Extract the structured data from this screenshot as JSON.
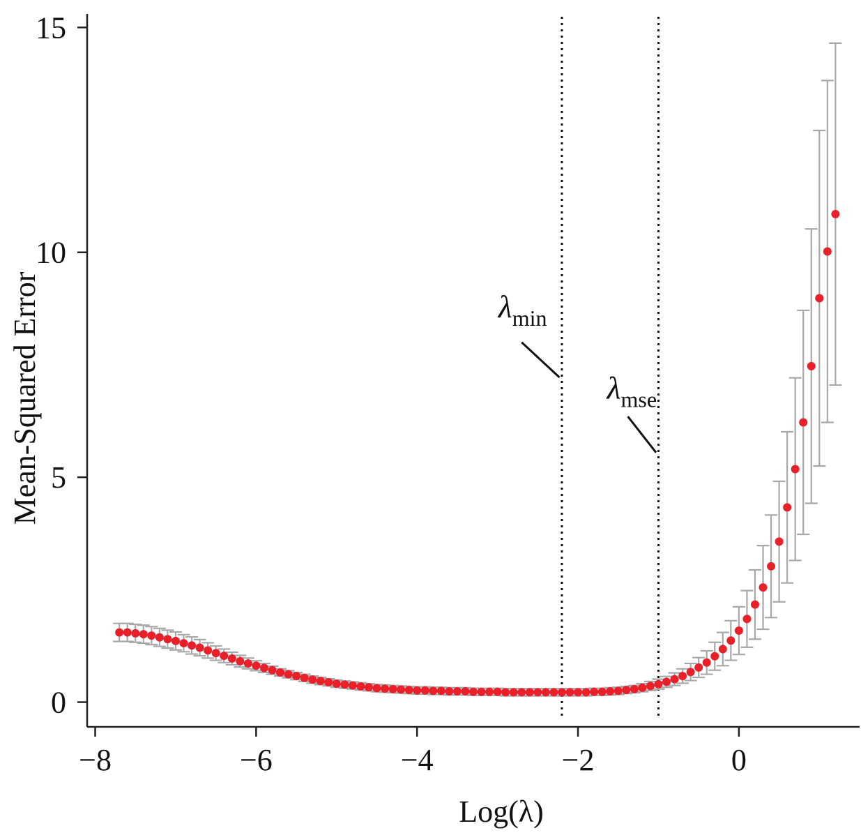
{
  "chart_data": {
    "type": "scatter",
    "title": "",
    "xlabel": "Log(λ)",
    "ylabel": "Mean-Squared Error",
    "xlim": [
      -8.1,
      1.5
    ],
    "ylim": [
      -0.55,
      15.3
    ],
    "x_ticks": [
      -8,
      -6,
      -4,
      -2,
      0
    ],
    "x_tick_labels": [
      "−8",
      "−6",
      "−4",
      "−2",
      "0"
    ],
    "y_ticks": [
      0,
      5,
      10,
      15
    ],
    "y_tick_labels": [
      "0",
      "5",
      "10",
      "15"
    ],
    "grid": false,
    "marker_color": "#e8202a",
    "errorbar_color": "#a8a8a8",
    "reference_lines": [
      {
        "name": "λmin",
        "symbol": "λ",
        "subscript": "min",
        "x": -2.2
      },
      {
        "name": "λmse",
        "symbol": "λ",
        "subscript": "mse",
        "x": -1.0
      }
    ],
    "series": [
      {
        "x": [
          -7.7,
          -7.6,
          -7.5,
          -7.4,
          -7.3,
          -7.2,
          -7.1,
          -7.0,
          -6.9,
          -6.8,
          -6.7,
          -6.6,
          -6.5,
          -6.4,
          -6.3,
          -6.2,
          -6.1,
          -6.0,
          -5.9,
          -5.8,
          -5.7,
          -5.6,
          -5.5,
          -5.4,
          -5.3,
          -5.2,
          -5.1,
          -5.0,
          -4.9,
          -4.8,
          -4.7,
          -4.6,
          -4.5,
          -4.4,
          -4.3,
          -4.2,
          -4.1,
          -4.0,
          -3.9,
          -3.8,
          -3.7,
          -3.6,
          -3.5,
          -3.4,
          -3.3,
          -3.2,
          -3.1,
          -3.0,
          -2.9,
          -2.8,
          -2.7,
          -2.6,
          -2.5,
          -2.4,
          -2.3,
          -2.2,
          -2.1,
          -2.0,
          -1.9,
          -1.8,
          -1.7,
          -1.6,
          -1.5,
          -1.4,
          -1.3,
          -1.2,
          -1.1,
          -1.0,
          -0.9,
          -0.8,
          -0.7,
          -0.6,
          -0.5,
          -0.4,
          -0.3,
          -0.2,
          -0.1,
          0.0,
          0.1,
          0.2,
          0.3,
          0.4,
          0.5,
          0.6,
          0.7,
          0.8,
          0.9,
          1.0,
          1.1,
          1.2
        ],
        "y": [
          1.55,
          1.55,
          1.53,
          1.51,
          1.48,
          1.44,
          1.4,
          1.36,
          1.31,
          1.26,
          1.21,
          1.15,
          1.09,
          1.03,
          0.97,
          0.91,
          0.86,
          0.81,
          0.76,
          0.71,
          0.66,
          0.62,
          0.58,
          0.54,
          0.5,
          0.47,
          0.44,
          0.41,
          0.39,
          0.37,
          0.35,
          0.33,
          0.31,
          0.3,
          0.29,
          0.28,
          0.27,
          0.26,
          0.26,
          0.25,
          0.25,
          0.24,
          0.24,
          0.24,
          0.23,
          0.23,
          0.23,
          0.23,
          0.22,
          0.22,
          0.22,
          0.22,
          0.22,
          0.22,
          0.22,
          0.22,
          0.22,
          0.22,
          0.22,
          0.23,
          0.23,
          0.24,
          0.25,
          0.27,
          0.29,
          0.32,
          0.36,
          0.4,
          0.45,
          0.51,
          0.58,
          0.67,
          0.77,
          0.88,
          1.02,
          1.18,
          1.37,
          1.59,
          1.85,
          2.17,
          2.55,
          3.02,
          3.57,
          4.33,
          5.18,
          6.22,
          7.47,
          8.98,
          10.02,
          10.85
        ],
        "err_low": [
          1.35,
          1.35,
          1.33,
          1.31,
          1.28,
          1.24,
          1.2,
          1.16,
          1.12,
          1.07,
          1.03,
          0.98,
          0.93,
          0.88,
          0.83,
          0.78,
          0.74,
          0.7,
          0.66,
          0.62,
          0.58,
          0.54,
          0.5,
          0.46,
          0.42,
          0.39,
          0.36,
          0.33,
          0.31,
          0.29,
          0.27,
          0.25,
          0.23,
          0.22,
          0.21,
          0.2,
          0.19,
          0.18,
          0.18,
          0.17,
          0.17,
          0.16,
          0.16,
          0.16,
          0.15,
          0.15,
          0.15,
          0.15,
          0.14,
          0.14,
          0.14,
          0.14,
          0.14,
          0.14,
          0.14,
          0.14,
          0.14,
          0.14,
          0.14,
          0.15,
          0.15,
          0.16,
          0.17,
          0.19,
          0.21,
          0.23,
          0.26,
          0.29,
          0.33,
          0.37,
          0.42,
          0.48,
          0.55,
          0.62,
          0.71,
          0.81,
          0.93,
          1.06,
          1.22,
          1.4,
          1.62,
          1.88,
          2.23,
          2.65,
          3.15,
          3.73,
          4.42,
          5.25,
          6.22,
          7.05
        ],
        "err_high": [
          1.75,
          1.75,
          1.73,
          1.71,
          1.68,
          1.64,
          1.6,
          1.56,
          1.5,
          1.45,
          1.39,
          1.32,
          1.25,
          1.18,
          1.11,
          1.04,
          0.98,
          0.92,
          0.86,
          0.8,
          0.74,
          0.7,
          0.66,
          0.62,
          0.58,
          0.55,
          0.52,
          0.49,
          0.47,
          0.45,
          0.43,
          0.41,
          0.39,
          0.38,
          0.37,
          0.36,
          0.35,
          0.34,
          0.34,
          0.33,
          0.33,
          0.32,
          0.32,
          0.32,
          0.31,
          0.31,
          0.31,
          0.31,
          0.3,
          0.3,
          0.3,
          0.3,
          0.3,
          0.3,
          0.3,
          0.3,
          0.3,
          0.3,
          0.3,
          0.31,
          0.31,
          0.32,
          0.33,
          0.35,
          0.37,
          0.41,
          0.46,
          0.51,
          0.57,
          0.65,
          0.74,
          0.86,
          0.99,
          1.14,
          1.33,
          1.55,
          1.81,
          2.12,
          2.48,
          2.94,
          3.48,
          4.16,
          4.91,
          6.01,
          7.21,
          8.71,
          10.52,
          12.71,
          13.82,
          14.65
        ]
      }
    ]
  }
}
